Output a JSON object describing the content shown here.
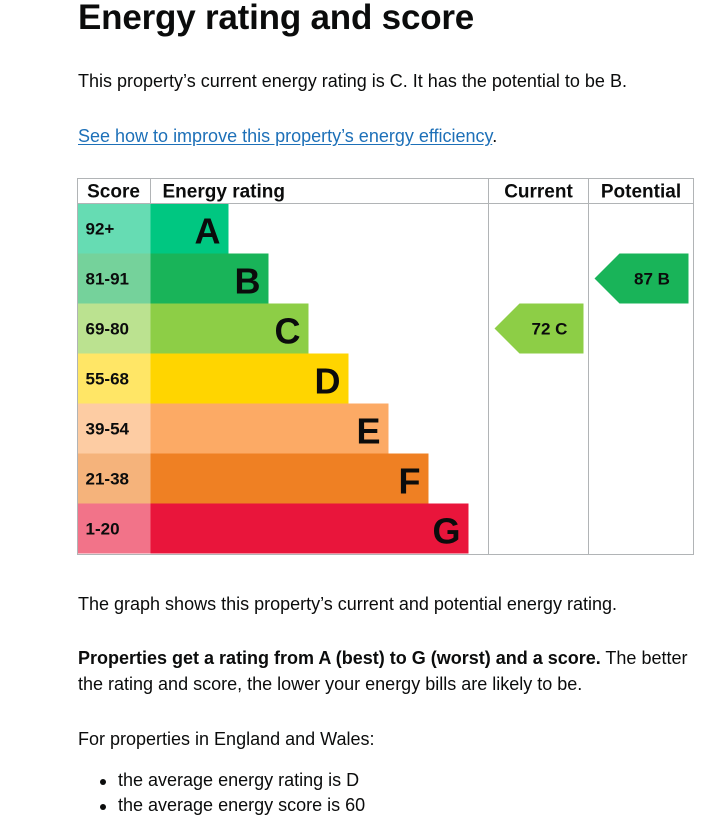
{
  "heading": "Energy rating and score",
  "intro": "This property’s current energy rating is C. It has the potential to be B.",
  "improve_link": "See how to improve this property’s energy efficiency",
  "improve_link_suffix": ".",
  "graph_caption": "The graph shows this property’s current and potential energy rating.",
  "rating_bold": "Properties get a rating from A (best) to G (worst) and a score.",
  "rating_text": " The better the rating and score, the lower your energy bills are likely to be.",
  "region_text": "For properties in England and Wales:",
  "bullets": [
    "the average energy rating is D",
    "the average energy score is 60"
  ],
  "chart_data": {
    "type": "table",
    "headers": {
      "score": "Score",
      "rating": "Energy rating",
      "current": "Current",
      "potential": "Potential"
    },
    "bands": [
      {
        "band": "A",
        "range": "92+",
        "color": "#00c781",
        "score_bg": "#66dcb3"
      },
      {
        "band": "B",
        "range": "81-91",
        "color": "#19b459",
        "score_bg": "#75d29b"
      },
      {
        "band": "C",
        "range": "69-80",
        "color": "#8dce46",
        "score_bg": "#bbe290"
      },
      {
        "band": "D",
        "range": "55-68",
        "color": "#ffd500",
        "score_bg": "#ffe666"
      },
      {
        "band": "E",
        "range": "39-54",
        "color": "#fcaa65",
        "score_bg": "#fdcca3"
      },
      {
        "band": "F",
        "range": "21-38",
        "color": "#ef8023",
        "score_bg": "#f5b37b"
      },
      {
        "band": "G",
        "range": "1-20",
        "color": "#e9153b",
        "score_bg": "#f27389"
      }
    ],
    "current": {
      "score": 72,
      "band": "C",
      "label": "72  C",
      "color": "#8dce46"
    },
    "potential": {
      "score": 87,
      "band": "B",
      "label": "87  B",
      "color": "#19b459"
    }
  }
}
